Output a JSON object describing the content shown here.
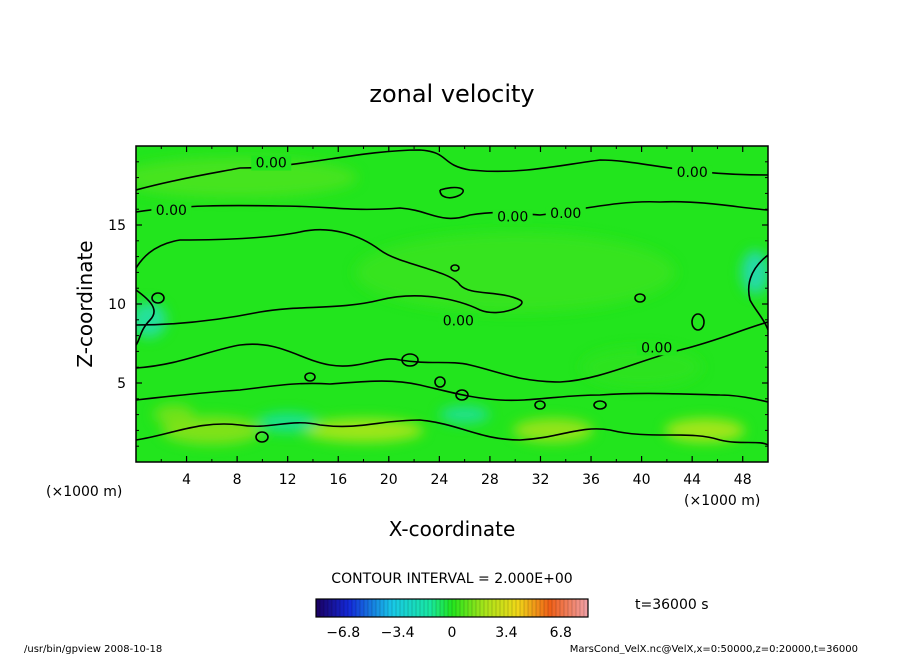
{
  "chart_data": {
    "type": "heatmap",
    "title": "zonal velocity",
    "xlabel": "X-coordinate",
    "ylabel": "Z-coordinate",
    "x_unit": "(×1000 m)",
    "y_unit": "(×1000 m)",
    "xlim": [
      0,
      50
    ],
    "ylim": [
      0,
      20
    ],
    "x_ticks": [
      "4",
      "8",
      "12",
      "16",
      "20",
      "24",
      "28",
      "32",
      "36",
      "40",
      "44",
      "48"
    ],
    "y_ticks": [
      "5",
      "10",
      "15"
    ],
    "contour_interval_text": "CONTOUR INTERVAL = 2.000E+00",
    "contour_labels": [
      {
        "text": "0.00",
        "x": 10.7,
        "z": 18.7
      },
      {
        "text": "0.00",
        "x": 44.0,
        "z": 18.1
      },
      {
        "text": "0.00",
        "x": 2.8,
        "z": 15.7
      },
      {
        "text": "0.00",
        "x": 29.8,
        "z": 15.3
      },
      {
        "text": "0.00",
        "x": 34.0,
        "z": 15.5
      },
      {
        "text": "0.00",
        "x": 25.5,
        "z": 8.7
      },
      {
        "text": "0.00",
        "x": 41.2,
        "z": 7.0
      }
    ],
    "time_text": "t=36000 s",
    "colorbar": {
      "range": [
        -8.5,
        8.5
      ],
      "ticks": [
        "-6.8",
        "-3.4",
        "0",
        "3.4",
        "6.8"
      ],
      "tick_values": [
        -6.8,
        -3.4,
        0,
        3.4,
        6.8
      ]
    },
    "colors": {
      "base_field": "#22e51d",
      "plot_border": "#000000",
      "contour": "#000000"
    }
  },
  "footer": {
    "left": "/usr/bin/gpview   2008-10-18",
    "right": "MarsCond_VelX.nc@VelX,x=0:50000,z=0:20000,t=36000"
  }
}
